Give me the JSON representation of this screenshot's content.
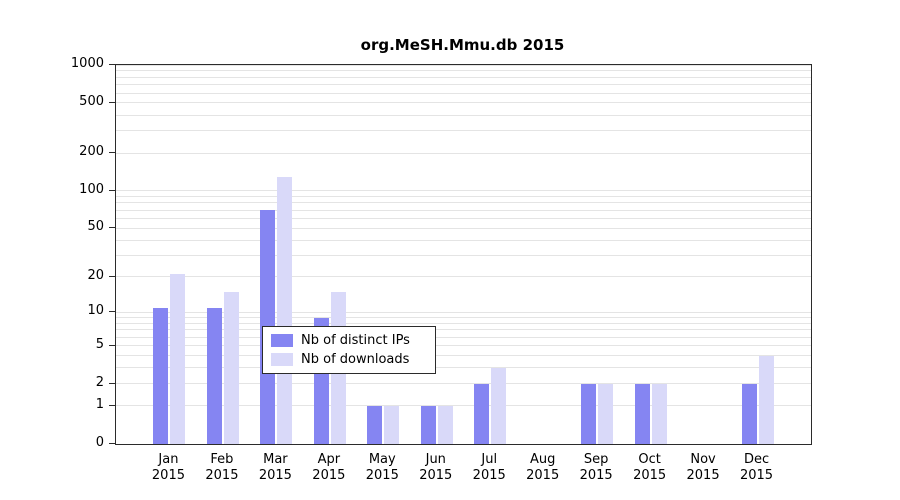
{
  "title": "org.MeSH.Mmu.db 2015",
  "colors": {
    "ips": "#8585f2",
    "downloads": "#d9d9f9",
    "grid": "#e4e4e4",
    "axis": "#2b2b2b"
  },
  "legend": {
    "items": [
      {
        "key": "ips",
        "label": "Nb of distinct IPs"
      },
      {
        "key": "downloads",
        "label": "Nb of downloads"
      }
    ]
  },
  "y_axis": {
    "ticks": [
      0,
      1,
      2,
      5,
      10,
      20,
      50,
      100,
      200,
      500,
      1000
    ],
    "max": 1000,
    "scale": "log1p"
  },
  "chart_data": {
    "type": "bar",
    "title": "org.MeSH.Mmu.db 2015",
    "xlabel": "",
    "ylabel": "",
    "grid": "horizontal-log-minor",
    "legend_position": "bottom-center-inside",
    "categories": [
      "Jan",
      "Feb",
      "Mar",
      "Apr",
      "May",
      "Jun",
      "Jul",
      "Aug",
      "Sep",
      "Oct",
      "Nov",
      "Dec"
    ],
    "year": "2015",
    "y_ticks": [
      0,
      1,
      2,
      5,
      10,
      20,
      50,
      100,
      200,
      500,
      1000
    ],
    "series": [
      {
        "name": "Nb of distinct IPs",
        "values": [
          11,
          11,
          70,
          9,
          1,
          1,
          2,
          0,
          2,
          2,
          0,
          2
        ]
      },
      {
        "name": "Nb of downloads",
        "values": [
          21,
          15,
          130,
          15,
          1,
          1,
          3,
          0,
          2,
          2,
          0,
          4
        ]
      }
    ]
  }
}
